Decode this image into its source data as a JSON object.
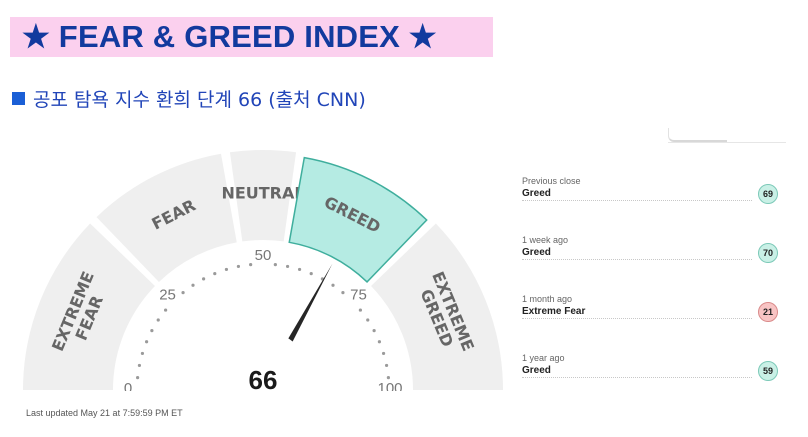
{
  "header": {
    "title": "★ FEAR & GREED INDEX ★",
    "subtitle": "공포 탐욕 지수 환희 단계 66 (출처 CNN)"
  },
  "gauge": {
    "value": 66,
    "value_label": "66",
    "segments": [
      {
        "label": "EXTREME FEAR",
        "line1": "EXTREME",
        "line2": "FEAR",
        "range": [
          0,
          25
        ],
        "active": false
      },
      {
        "label": "FEAR",
        "line1": "FEAR",
        "line2": "",
        "range": [
          25,
          45
        ],
        "active": false
      },
      {
        "label": "NEUTRAL",
        "line1": "NEUTRAL",
        "line2": "",
        "range": [
          45,
          55
        ],
        "active": false
      },
      {
        "label": "GREED",
        "line1": "GREED",
        "line2": "",
        "range": [
          55,
          75
        ],
        "active": true
      },
      {
        "label": "EXTREME GREED",
        "line1": "EXTREME",
        "line2": "GREED",
        "range": [
          75,
          100
        ],
        "active": false
      }
    ],
    "ticks": [
      "0",
      "25",
      "50",
      "75",
      "100"
    ],
    "colors": {
      "segment": "#efefef",
      "active": "#b5ebe3",
      "active_border": "#3fae9d",
      "needle": "#262626"
    }
  },
  "history": [
    {
      "label": "Previous close",
      "value": "Greed",
      "score": "69",
      "badge_bg": "#c9f0e6",
      "badge_border": "#7cc9b8"
    },
    {
      "label": "1 week ago",
      "value": "Greed",
      "score": "70",
      "badge_bg": "#c9f0e6",
      "badge_border": "#7cc9b8"
    },
    {
      "label": "1 month ago",
      "value": "Extreme Fear",
      "score": "21",
      "badge_bg": "#f8c4c4",
      "badge_border": "#d98a8a"
    },
    {
      "label": "1 year ago",
      "value": "Greed",
      "score": "59",
      "badge_bg": "#c9f0e6",
      "badge_border": "#7cc9b8"
    }
  ],
  "footer": {
    "updated": "Last updated May 21 at 7:59:59 PM ET"
  }
}
